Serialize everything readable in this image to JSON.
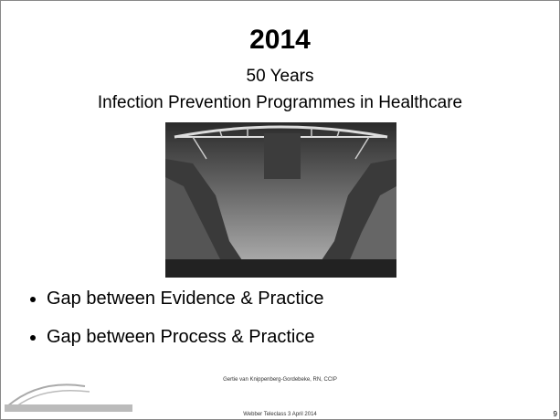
{
  "slide": {
    "title": "2014",
    "subtitle_lines": [
      "50 Years",
      "Infection Prevention Programmes in Healthcare"
    ],
    "bullets": [
      "Gap between Evidence & Practice",
      "Gap between Process & Practice"
    ],
    "footer": {
      "author": "Gertie van Knippenberg-Gordebeke, RN, CCIP",
      "event": "Webber Teleclass 3 April 2014",
      "page": "9"
    }
  }
}
